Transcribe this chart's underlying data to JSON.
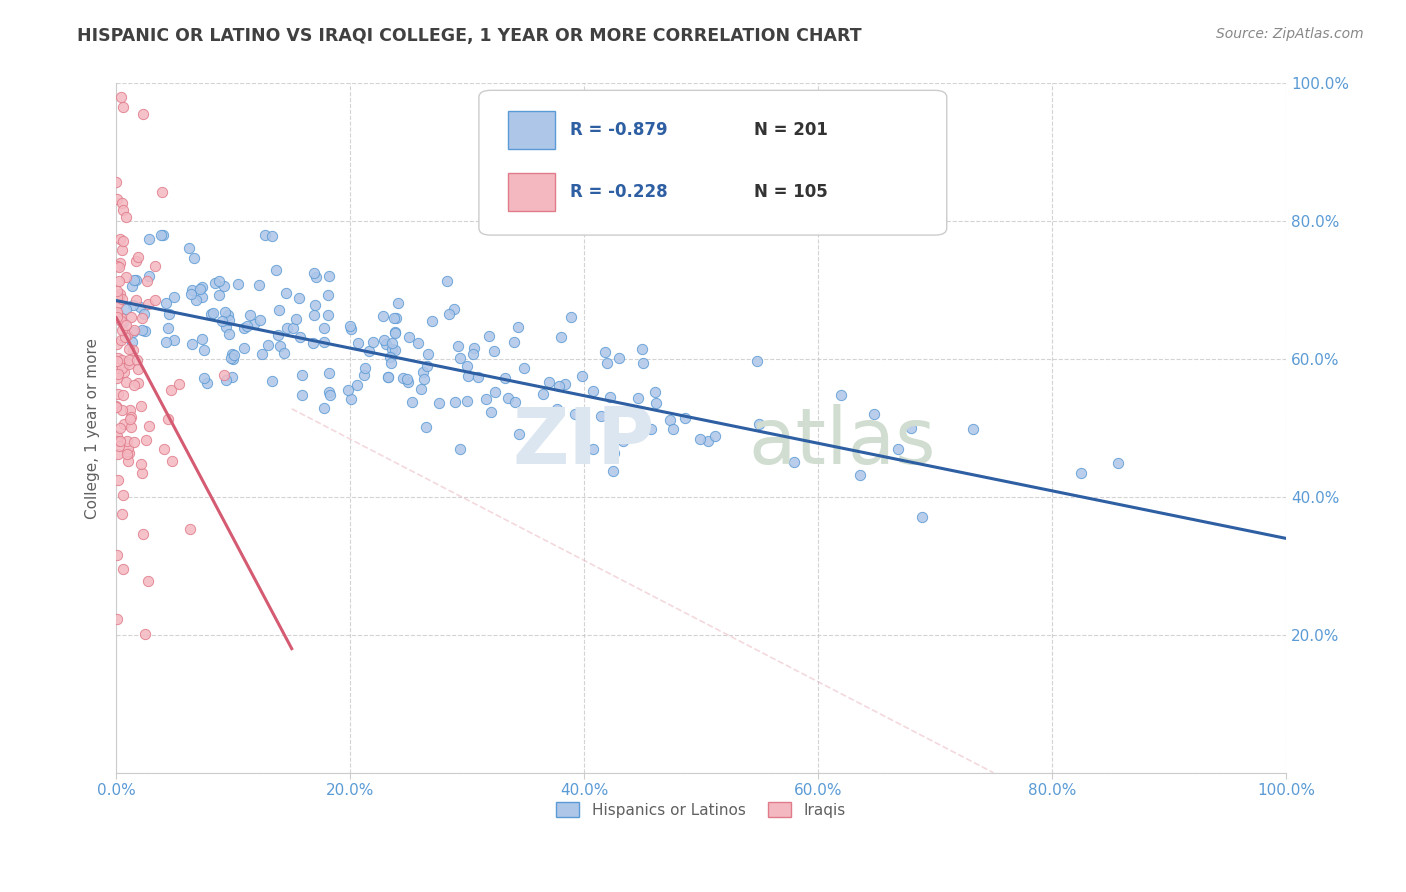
{
  "title": "HISPANIC OR LATINO VS IRAQI COLLEGE, 1 YEAR OR MORE CORRELATION CHART",
  "source": "Source: ZipAtlas.com",
  "ylabel": "College, 1 year or more",
  "xlim": [
    0,
    1.0
  ],
  "ylim": [
    0,
    1.0
  ],
  "xticks": [
    0.0,
    0.2,
    0.4,
    0.6,
    0.8,
    1.0
  ],
  "yticks": [
    0.0,
    0.2,
    0.4,
    0.6,
    0.8,
    1.0
  ],
  "xticklabels": [
    "0.0%",
    "20.0%",
    "40.0%",
    "60.0%",
    "80.0%",
    "100.0%"
  ],
  "right_yticklabels": [
    "",
    "20.0%",
    "40.0%",
    "60.0%",
    "80.0%",
    "100.0%"
  ],
  "legend_r1": "-0.879",
  "legend_n1": "201",
  "legend_r2": "-0.228",
  "legend_n2": "105",
  "hispanic_color": "#aec6e8",
  "iraqi_color": "#f4b8c1",
  "hispanic_edge": "#5b9bd5",
  "iraqi_edge": "#e07b8a",
  "reg_blue": "#2e5fa3",
  "reg_pink": "#d45b72",
  "reg_pink_dashed": "#f4b8c1",
  "background_color": "#ffffff",
  "grid_color": "#c8c8c8",
  "title_color": "#404040",
  "label_color": "#5b9bd5",
  "axis_label_color": "#606060",
  "hispanic_intercept": 0.685,
  "hispanic_slope": -0.345,
  "iraqi_intercept": 0.66,
  "iraqi_slope": -3.2,
  "iraqi_dashed_intercept": 0.66,
  "iraqi_dashed_slope": -0.88,
  "seed": 42
}
